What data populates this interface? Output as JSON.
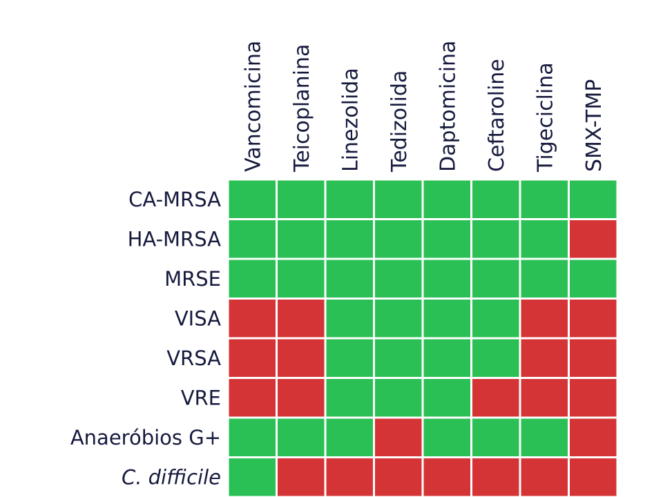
{
  "colors": {
    "yes": "#2bc055",
    "no": "#d43435",
    "grid": "#ffffff",
    "label": "#161a3d"
  },
  "chart_data": {
    "type": "heatmap",
    "columns": [
      "Vancomicina",
      "Teicoplanina",
      "Linezolida",
      "Tedizolida",
      "Daptomicina",
      "Ceftaroline",
      "Tigeciclina",
      "SMX-TMP"
    ],
    "rows": [
      {
        "label": "CA-MRSA",
        "italic": false,
        "values": [
          1,
          1,
          1,
          1,
          1,
          1,
          1,
          1
        ]
      },
      {
        "label": "HA-MRSA",
        "italic": false,
        "values": [
          1,
          1,
          1,
          1,
          1,
          1,
          1,
          0
        ]
      },
      {
        "label": "MRSE",
        "italic": false,
        "values": [
          1,
          1,
          1,
          1,
          1,
          1,
          1,
          1
        ]
      },
      {
        "label": "VISA",
        "italic": false,
        "values": [
          0,
          0,
          1,
          1,
          1,
          1,
          0,
          0
        ]
      },
      {
        "label": "VRSA",
        "italic": false,
        "values": [
          0,
          0,
          1,
          1,
          1,
          1,
          0,
          0
        ]
      },
      {
        "label": "VRE",
        "italic": false,
        "values": [
          0,
          0,
          1,
          1,
          1,
          0,
          0,
          0
        ]
      },
      {
        "label": "Anaeróbios G+",
        "italic": false,
        "values": [
          1,
          1,
          1,
          0,
          1,
          1,
          1,
          0
        ]
      },
      {
        "label": "C. difficile",
        "italic": true,
        "values": [
          1,
          0,
          0,
          0,
          0,
          0,
          0,
          0
        ]
      }
    ]
  }
}
